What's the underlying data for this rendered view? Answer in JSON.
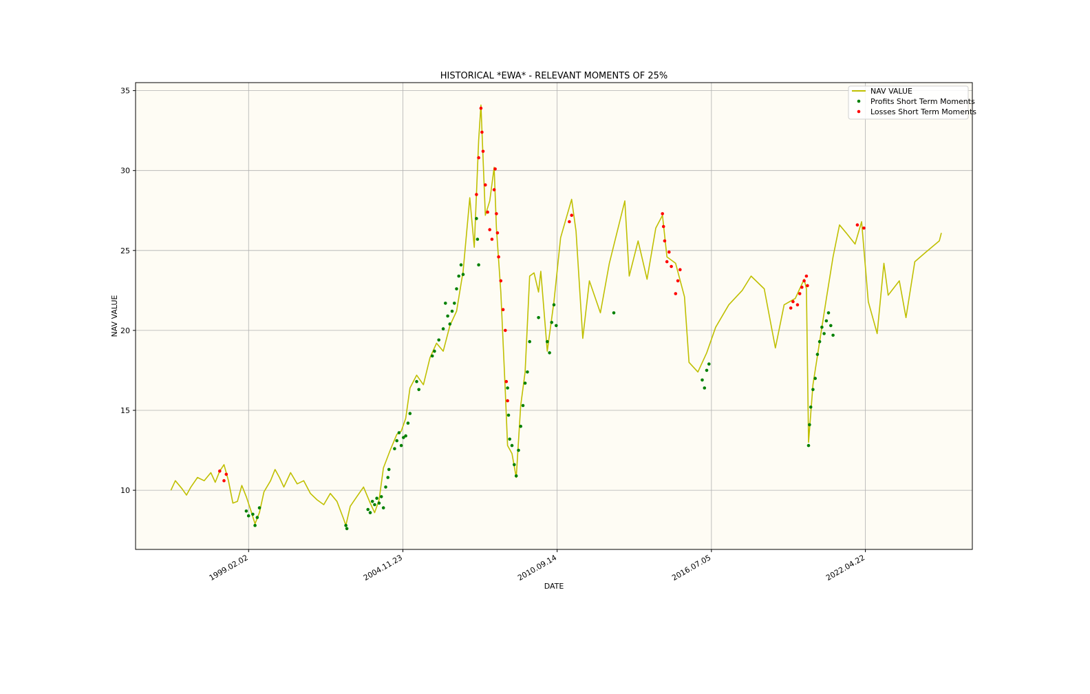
{
  "chart_data": {
    "type": "line",
    "title": "HISTORICAL *EWA* - RELEVANT MOMENTS OF 25%",
    "xlabel": "DATE",
    "ylabel": "NAV VALUE",
    "x_axis_type": "date",
    "xlim": [
      "1994-11-01",
      "2026-05-01"
    ],
    "ylim": [
      6.3,
      35.5
    ],
    "x_ticks": [
      "1999.02.02",
      "2004.11.23",
      "2010.09.14",
      "2016.07.05",
      "2022.04.22"
    ],
    "x_tick_dates": [
      "1999-02-02",
      "2004-11-23",
      "2010-09-14",
      "2016-07-05",
      "2022-04-22"
    ],
    "y_ticks": [
      10,
      15,
      20,
      25,
      30,
      35
    ],
    "grid": true,
    "legend_position": "top-right",
    "plot_background": "#fefcf4",
    "colors": {
      "nav": "#bfbf00",
      "profit": "#008000",
      "loss": "#ff0000"
    },
    "legend": [
      "NAV VALUE",
      "Profits Short Term Moments",
      "Losses Short Term Moments"
    ],
    "series": [
      {
        "name": "NAV VALUE",
        "kind": "line",
        "points": [
          [
            "1996-03-01",
            10.0
          ],
          [
            "1996-05-01",
            10.6
          ],
          [
            "1996-08-01",
            10.1
          ],
          [
            "1996-10-01",
            9.7
          ],
          [
            "1996-12-01",
            10.2
          ],
          [
            "1997-03-01",
            10.8
          ],
          [
            "1997-06-01",
            10.6
          ],
          [
            "1997-09-01",
            11.1
          ],
          [
            "1997-11-01",
            10.5
          ],
          [
            "1998-01-01",
            11.2
          ],
          [
            "1998-03-01",
            11.6
          ],
          [
            "1998-05-01",
            10.6
          ],
          [
            "1998-07-01",
            9.2
          ],
          [
            "1998-09-01",
            9.3
          ],
          [
            "1998-11-01",
            10.3
          ],
          [
            "1999-01-01",
            9.6
          ],
          [
            "1999-03-01",
            8.8
          ],
          [
            "1999-05-01",
            7.9
          ],
          [
            "1999-07-01",
            8.6
          ],
          [
            "1999-09-01",
            9.9
          ],
          [
            "1999-12-01",
            10.6
          ],
          [
            "2000-02-01",
            11.3
          ],
          [
            "2000-04-01",
            10.8
          ],
          [
            "2000-06-01",
            10.2
          ],
          [
            "2000-09-01",
            11.1
          ],
          [
            "2000-12-01",
            10.4
          ],
          [
            "2001-03-01",
            10.6
          ],
          [
            "2001-06-01",
            9.8
          ],
          [
            "2001-09-01",
            9.4
          ],
          [
            "2001-12-01",
            9.1
          ],
          [
            "2002-03-01",
            9.8
          ],
          [
            "2002-06-01",
            9.3
          ],
          [
            "2002-09-01",
            8.2
          ],
          [
            "2002-10-01",
            7.8
          ],
          [
            "2002-12-01",
            9.0
          ],
          [
            "2003-03-01",
            9.6
          ],
          [
            "2003-06-01",
            10.2
          ],
          [
            "2003-09-01",
            9.2
          ],
          [
            "2003-11-01",
            8.6
          ],
          [
            "2004-01-01",
            9.4
          ],
          [
            "2004-03-01",
            11.4
          ],
          [
            "2004-06-01",
            12.5
          ],
          [
            "2004-09-01",
            13.5
          ],
          [
            "2004-11-01",
            13.7
          ],
          [
            "2005-01-01",
            14.5
          ],
          [
            "2005-03-01",
            16.4
          ],
          [
            "2005-06-01",
            17.2
          ],
          [
            "2005-09-01",
            16.6
          ],
          [
            "2005-12-01",
            18.3
          ],
          [
            "2006-03-01",
            19.2
          ],
          [
            "2006-06-01",
            18.7
          ],
          [
            "2006-09-01",
            20.3
          ],
          [
            "2006-12-01",
            21.2
          ],
          [
            "2007-03-01",
            23.7
          ],
          [
            "2007-06-01",
            28.3
          ],
          [
            "2007-08-01",
            25.2
          ],
          [
            "2007-10-01",
            31.9
          ],
          [
            "2007-11-01",
            34.1
          ],
          [
            "2008-01-01",
            27.2
          ],
          [
            "2008-03-01",
            28.1
          ],
          [
            "2008-05-01",
            30.2
          ],
          [
            "2008-06-01",
            26.4
          ],
          [
            "2008-08-01",
            22.4
          ],
          [
            "2008-10-01",
            16.2
          ],
          [
            "2008-11-01",
            12.8
          ],
          [
            "2009-01-01",
            12.3
          ],
          [
            "2009-03-01",
            10.8
          ],
          [
            "2009-05-01",
            15.3
          ],
          [
            "2009-07-01",
            17.4
          ],
          [
            "2009-09-01",
            23.4
          ],
          [
            "2009-11-01",
            23.6
          ],
          [
            "2010-01-01",
            22.4
          ],
          [
            "2010-02-01",
            23.7
          ],
          [
            "2010-05-01",
            18.7
          ],
          [
            "2010-08-01",
            21.8
          ],
          [
            "2010-11-01",
            25.8
          ],
          [
            "2011-04-01",
            28.2
          ],
          [
            "2011-06-01",
            26.2
          ],
          [
            "2011-09-01",
            19.5
          ],
          [
            "2011-12-01",
            23.1
          ],
          [
            "2012-05-01",
            21.1
          ],
          [
            "2012-09-01",
            24.2
          ],
          [
            "2013-04-01",
            28.1
          ],
          [
            "2013-06-01",
            23.4
          ],
          [
            "2013-10-01",
            25.6
          ],
          [
            "2014-02-01",
            23.2
          ],
          [
            "2014-06-01",
            26.4
          ],
          [
            "2014-09-01",
            27.2
          ],
          [
            "2014-11-01",
            24.6
          ],
          [
            "2015-03-01",
            24.2
          ],
          [
            "2015-07-01",
            22.1
          ],
          [
            "2015-09-01",
            18.0
          ],
          [
            "2016-01-01",
            17.4
          ],
          [
            "2016-05-01",
            18.6
          ],
          [
            "2016-09-01",
            20.2
          ],
          [
            "2017-03-01",
            21.6
          ],
          [
            "2017-09-01",
            22.5
          ],
          [
            "2018-01-01",
            23.4
          ],
          [
            "2018-07-01",
            22.6
          ],
          [
            "2018-12-01",
            18.9
          ],
          [
            "2019-04-01",
            21.6
          ],
          [
            "2019-09-01",
            22.0
          ],
          [
            "2020-01-01",
            23.2
          ],
          [
            "2020-02-01",
            22.6
          ],
          [
            "2020-03-01",
            13.0
          ],
          [
            "2020-05-01",
            16.6
          ],
          [
            "2020-08-01",
            19.3
          ],
          [
            "2020-11-01",
            22.0
          ],
          [
            "2021-02-01",
            24.6
          ],
          [
            "2021-05-01",
            26.6
          ],
          [
            "2021-08-01",
            26.1
          ],
          [
            "2021-12-01",
            25.4
          ],
          [
            "2022-03-01",
            26.8
          ],
          [
            "2022-06-01",
            21.8
          ],
          [
            "2022-10-01",
            19.8
          ],
          [
            "2023-01-01",
            24.2
          ],
          [
            "2023-03-01",
            22.2
          ],
          [
            "2023-08-01",
            23.1
          ],
          [
            "2023-11-01",
            20.8
          ],
          [
            "2024-03-01",
            24.3
          ],
          [
            "2024-08-01",
            24.9
          ],
          [
            "2025-02-01",
            25.6
          ],
          [
            "2025-03-01",
            26.1
          ]
        ]
      },
      {
        "name": "Profits Short Term Moments",
        "kind": "scatter",
        "points": [
          [
            "1999-01-01",
            8.7
          ],
          [
            "1999-02-01",
            8.4
          ],
          [
            "1999-04-01",
            8.5
          ],
          [
            "1999-05-01",
            7.8
          ],
          [
            "1999-06-01",
            8.3
          ],
          [
            "1999-07-01",
            8.9
          ],
          [
            "2002-10-01",
            7.8
          ],
          [
            "2002-10-15",
            7.6
          ],
          [
            "2003-08-01",
            8.8
          ],
          [
            "2003-09-01",
            8.6
          ],
          [
            "2003-10-01",
            9.3
          ],
          [
            "2003-11-01",
            9.1
          ],
          [
            "2003-12-01",
            9.5
          ],
          [
            "2004-01-01",
            9.2
          ],
          [
            "2004-02-01",
            9.6
          ],
          [
            "2004-03-01",
            8.9
          ],
          [
            "2004-04-01",
            10.2
          ],
          [
            "2004-05-01",
            10.8
          ],
          [
            "2004-05-15",
            11.3
          ],
          [
            "2004-08-01",
            12.6
          ],
          [
            "2004-09-01",
            13.1
          ],
          [
            "2004-10-01",
            13.6
          ],
          [
            "2004-11-01",
            12.8
          ],
          [
            "2004-12-01",
            13.3
          ],
          [
            "2005-01-01",
            13.4
          ],
          [
            "2005-02-01",
            14.2
          ],
          [
            "2005-03-01",
            14.8
          ],
          [
            "2005-06-01",
            16.8
          ],
          [
            "2005-07-01",
            16.3
          ],
          [
            "2006-01-01",
            18.4
          ],
          [
            "2006-02-01",
            18.7
          ],
          [
            "2006-04-01",
            19.4
          ],
          [
            "2006-06-01",
            20.1
          ],
          [
            "2006-07-01",
            21.7
          ],
          [
            "2006-08-01",
            20.9
          ],
          [
            "2006-09-01",
            20.4
          ],
          [
            "2006-10-01",
            21.2
          ],
          [
            "2006-11-01",
            21.7
          ],
          [
            "2006-12-01",
            22.6
          ],
          [
            "2007-01-01",
            23.4
          ],
          [
            "2007-02-01",
            24.1
          ],
          [
            "2007-03-01",
            23.5
          ],
          [
            "2007-09-01",
            27.0
          ],
          [
            "2007-09-15",
            25.7
          ],
          [
            "2007-10-01",
            24.1
          ],
          [
            "2008-11-01",
            16.4
          ],
          [
            "2008-11-15",
            14.7
          ],
          [
            "2008-12-01",
            13.2
          ],
          [
            "2009-01-01",
            12.8
          ],
          [
            "2009-02-01",
            11.6
          ],
          [
            "2009-03-01",
            10.9
          ],
          [
            "2009-04-01",
            12.5
          ],
          [
            "2009-05-01",
            14.0
          ],
          [
            "2009-06-01",
            15.3
          ],
          [
            "2009-07-01",
            16.7
          ],
          [
            "2009-08-01",
            17.4
          ],
          [
            "2009-09-01",
            19.3
          ],
          [
            "2010-01-01",
            20.8
          ],
          [
            "2010-05-01",
            19.3
          ],
          [
            "2010-06-01",
            18.6
          ],
          [
            "2010-07-01",
            20.5
          ],
          [
            "2010-08-01",
            21.6
          ],
          [
            "2010-09-01",
            20.3
          ],
          [
            "2012-11-01",
            21.1
          ],
          [
            "2016-03-01",
            16.9
          ],
          [
            "2016-04-01",
            16.4
          ],
          [
            "2016-05-01",
            17.5
          ],
          [
            "2016-06-01",
            17.9
          ],
          [
            "2020-03-01",
            12.8
          ],
          [
            "2020-03-15",
            14.1
          ],
          [
            "2020-04-01",
            15.2
          ],
          [
            "2020-05-01",
            16.3
          ],
          [
            "2020-06-01",
            17.0
          ],
          [
            "2020-07-01",
            18.5
          ],
          [
            "2020-08-01",
            19.3
          ],
          [
            "2020-09-01",
            20.2
          ],
          [
            "2020-10-01",
            19.8
          ],
          [
            "2020-11-01",
            20.6
          ],
          [
            "2020-12-01",
            21.1
          ],
          [
            "2021-01-01",
            20.3
          ],
          [
            "2021-02-01",
            19.7
          ]
        ]
      },
      {
        "name": "Losses Short Term Moments",
        "kind": "scatter",
        "points": [
          [
            "1998-01-01",
            11.2
          ],
          [
            "1998-03-01",
            10.6
          ],
          [
            "1998-04-01",
            11.0
          ],
          [
            "2007-09-01",
            28.5
          ],
          [
            "2007-10-01",
            30.8
          ],
          [
            "2007-11-01",
            33.9
          ],
          [
            "2007-11-15",
            32.4
          ],
          [
            "2007-12-01",
            31.2
          ],
          [
            "2008-01-01",
            29.1
          ],
          [
            "2008-02-01",
            27.4
          ],
          [
            "2008-03-01",
            26.3
          ],
          [
            "2008-04-01",
            25.7
          ],
          [
            "2008-05-01",
            28.8
          ],
          [
            "2008-05-15",
            30.1
          ],
          [
            "2008-06-01",
            27.3
          ],
          [
            "2008-06-15",
            26.1
          ],
          [
            "2008-07-01",
            24.6
          ],
          [
            "2008-08-01",
            23.1
          ],
          [
            "2008-09-01",
            21.3
          ],
          [
            "2008-10-01",
            20.0
          ],
          [
            "2008-10-15",
            16.8
          ],
          [
            "2008-11-01",
            15.6
          ],
          [
            "2011-03-01",
            26.8
          ],
          [
            "2011-04-01",
            27.2
          ],
          [
            "2014-09-01",
            27.3
          ],
          [
            "2014-09-15",
            26.5
          ],
          [
            "2014-10-01",
            25.6
          ],
          [
            "2014-11-01",
            24.3
          ],
          [
            "2014-12-01",
            24.9
          ],
          [
            "2015-01-01",
            24.0
          ],
          [
            "2015-03-01",
            22.3
          ],
          [
            "2015-04-01",
            23.1
          ],
          [
            "2015-05-01",
            23.8
          ],
          [
            "2019-07-01",
            21.4
          ],
          [
            "2019-08-01",
            21.8
          ],
          [
            "2019-10-01",
            21.6
          ],
          [
            "2019-11-01",
            22.3
          ],
          [
            "2019-12-01",
            22.7
          ],
          [
            "2020-01-01",
            23.1
          ],
          [
            "2020-02-01",
            23.4
          ],
          [
            "2020-02-15",
            22.8
          ],
          [
            "2022-01-01",
            26.6
          ],
          [
            "2022-04-01",
            26.4
          ]
        ]
      }
    ]
  }
}
